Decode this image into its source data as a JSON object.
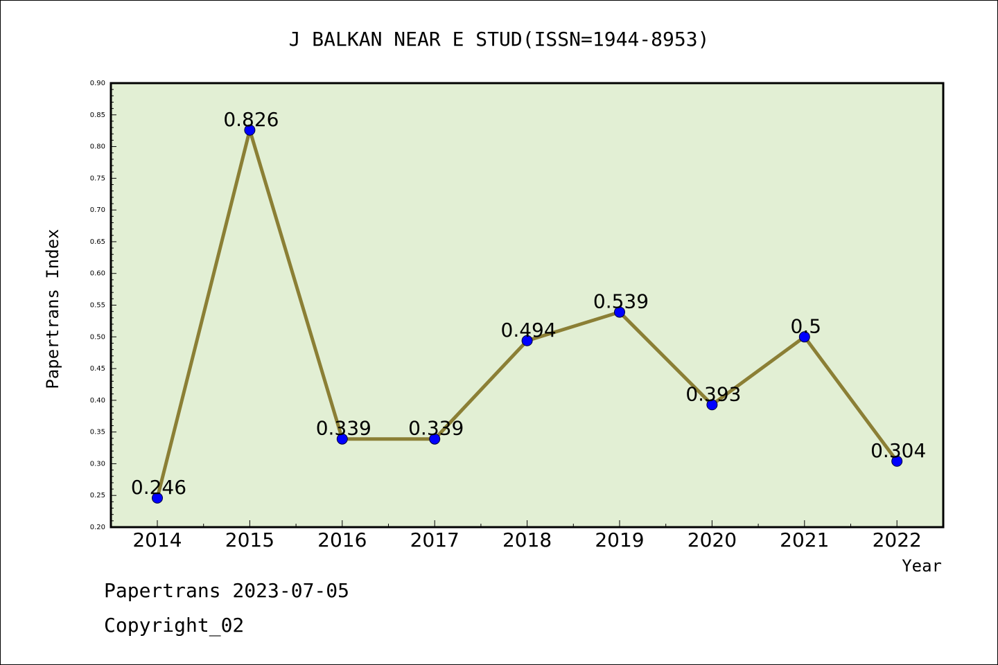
{
  "chart_data": {
    "type": "line",
    "title": "J BALKAN NEAR E STUD(ISSN=1944-8953)",
    "xlabel": "Year",
    "ylabel": "Papertrans Index",
    "categories": [
      "2014",
      "2015",
      "2016",
      "2017",
      "2018",
      "2019",
      "2020",
      "2021",
      "2022"
    ],
    "series": [
      {
        "values": [
          0.246,
          0.826,
          0.339,
          0.339,
          0.494,
          0.539,
          0.393,
          0.5,
          0.304
        ],
        "labels": [
          "0.246",
          "0.826",
          "0.339",
          "0.339",
          "0.494",
          "0.539",
          "0.393",
          "0.5",
          "0.304"
        ]
      }
    ],
    "ylim": [
      0.2,
      0.9
    ],
    "yticks": [
      "0.20",
      "0.25",
      "0.30",
      "0.35",
      "0.40",
      "0.45",
      "0.50",
      "0.55",
      "0.60",
      "0.65",
      "0.70",
      "0.75",
      "0.80",
      "0.85",
      "0.90"
    ],
    "grid": false,
    "legend": "none",
    "colors": {
      "plot_background": "#e2efd4",
      "line": "#8b7f35",
      "marker": "#0000ff"
    }
  },
  "footer": {
    "line1": "Papertrans 2023-07-05",
    "line2": "Copyright_02"
  }
}
